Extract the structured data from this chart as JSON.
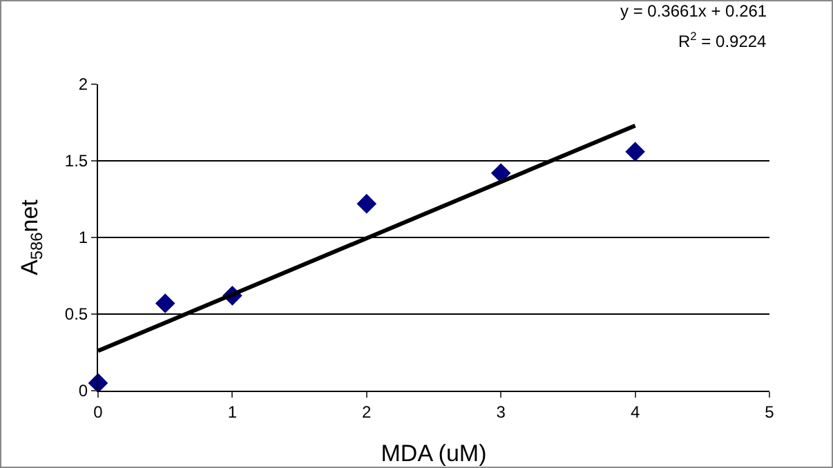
{
  "chart_data": {
    "type": "scatter",
    "xlabel": "MDA (uM)",
    "ylabel": "A$_{586}$net",
    "annotations": [
      "y = 0.3661x + 0.261",
      "R$^{2}$ = 0.9224"
    ],
    "series": [
      {
        "color": "#000080",
        "x": [
          0,
          0.5,
          1,
          2,
          3,
          4
        ],
        "values": [
          0.05,
          0.57,
          0.62,
          1.22,
          1.42,
          1.56
        ]
      },
      {
        "type": "line",
        "color": "#000000",
        "marker": "none",
        "x": [
          0,
          4
        ],
        "values": [
          0.26,
          1.73
        ]
      }
    ],
    "marker": "diamond",
    "xlim": [
      0,
      5
    ],
    "xticks": [
      0,
      1,
      2,
      3,
      4,
      5
    ],
    "ylim": [
      0,
      2
    ],
    "yticks": [
      0,
      0.5,
      1,
      1.5,
      2
    ],
    "grid": "y"
  }
}
